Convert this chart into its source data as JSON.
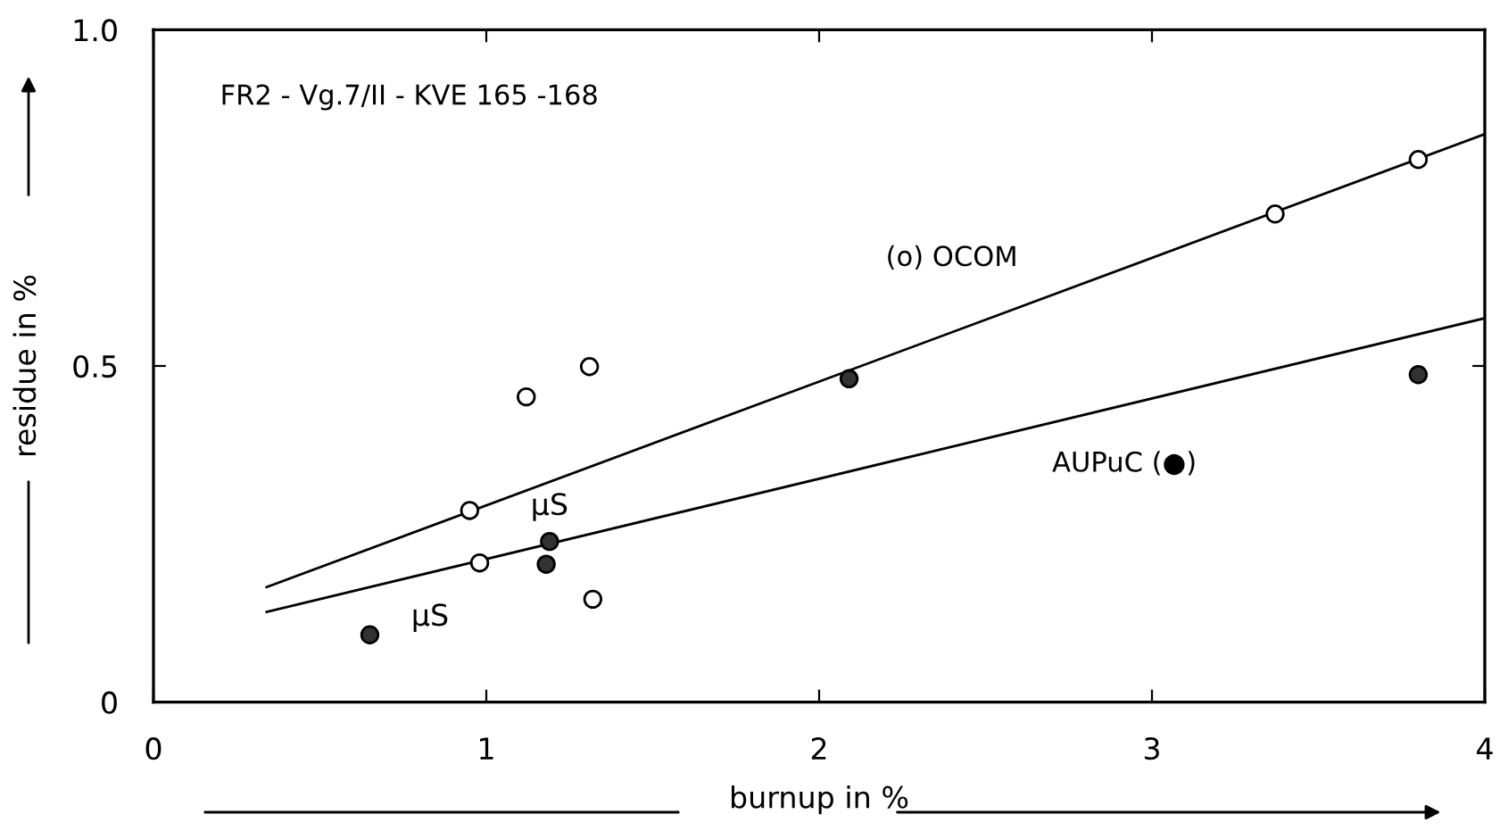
{
  "chart_data": {
    "type": "scatter",
    "xlabel": "burnup in %",
    "ylabel": "residue in %",
    "xlim": [
      0,
      4
    ],
    "ylim": [
      0,
      1.0
    ],
    "xticks": [
      0,
      1,
      2,
      3,
      4
    ],
    "yticks": [
      0,
      0.5,
      {
        "value": 1.0,
        "label": "1.0"
      }
    ],
    "grid": false,
    "series": [
      {
        "marker": "circle",
        "color": "#ffffff",
        "x": [
          0.95,
          1.12,
          1.31,
          0.98,
          1.32,
          3.37,
          3.8
        ],
        "values": [
          0.285,
          0.454,
          0.499,
          0.207,
          0.153,
          0.726,
          0.807
        ]
      },
      {
        "marker": "circle",
        "color": "#333333",
        "x": [
          0.65,
          1.19,
          1.18,
          2.09,
          3.8
        ],
        "values": [
          0.1,
          0.239,
          0.205,
          0.481,
          0.487
        ]
      },
      {
        "type": "line",
        "marker": "none",
        "color": "#000000",
        "x": [
          0.34,
          4.0
        ],
        "values": [
          0.171,
          0.845
        ]
      },
      {
        "type": "line",
        "marker": "none",
        "color": "#000000",
        "x": [
          0.34,
          4.0
        ],
        "values": [
          0.134,
          0.571
        ]
      }
    ],
    "annotations": [
      "FR2 - Vg.7/II - KVE 165 -168",
      "(o) OCOM",
      "AUPuC (●)",
      {
        "text": "μS",
        "x": 1.19,
        "y": 0.239
      },
      {
        "text": "μS",
        "x": 0.98,
        "y": 0.207
      }
    ]
  }
}
